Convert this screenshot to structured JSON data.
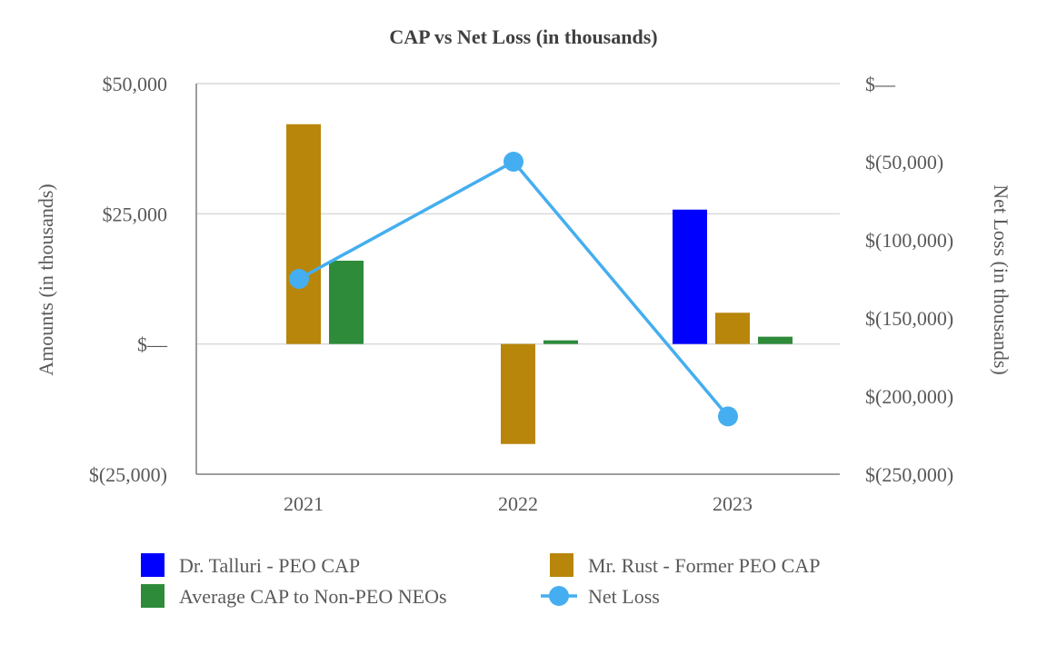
{
  "chart_data": {
    "type": "bar",
    "title": "CAP vs Net Loss (in thousands)",
    "ylabel": "Amounts (in thousands)",
    "y2label": "Net Loss (in thousands)",
    "categories": [
      "2021",
      "2022",
      "2023"
    ],
    "ylim": [
      -25000,
      50000
    ],
    "y2lim": [
      -250000,
      0
    ],
    "yticks": [
      50000,
      25000,
      0,
      -25000
    ],
    "yticklabels": [
      "$50,000",
      "$25,000",
      "$—",
      "$(25,000)"
    ],
    "y2ticks": [
      0,
      -50000,
      -100000,
      -150000,
      -200000,
      -250000
    ],
    "y2ticklabels": [
      "$—",
      "$(50,000)",
      "$(100,000)",
      "$(150,000)",
      "$(200,000)",
      "$(250,000)"
    ],
    "series": [
      {
        "name": "Dr. Talluri - PEO CAP",
        "type": "bar",
        "axis": "left",
        "color": "#0000ff",
        "values": [
          null,
          null,
          25800
        ]
      },
      {
        "name": "Mr. Rust - Former PEO CAP",
        "type": "bar",
        "axis": "left",
        "color": "#b8860b",
        "values": [
          42200,
          -19200,
          6000
        ]
      },
      {
        "name": "Average CAP to Non-PEO NEOs",
        "type": "bar",
        "axis": "left",
        "color": "#2e8b3a",
        "values": [
          16000,
          700,
          1400
        ]
      },
      {
        "name": "Net Loss",
        "type": "line",
        "axis": "right",
        "color": "#44aef0",
        "values": [
          -125000,
          -50000,
          -213000
        ]
      }
    ],
    "legend": {
      "position": "bottom",
      "entries": [
        "Dr. Talluri - PEO CAP",
        "Mr. Rust - Former PEO CAP",
        "Average CAP to Non-PEO NEOs",
        "Net Loss"
      ]
    },
    "grid": true
  }
}
